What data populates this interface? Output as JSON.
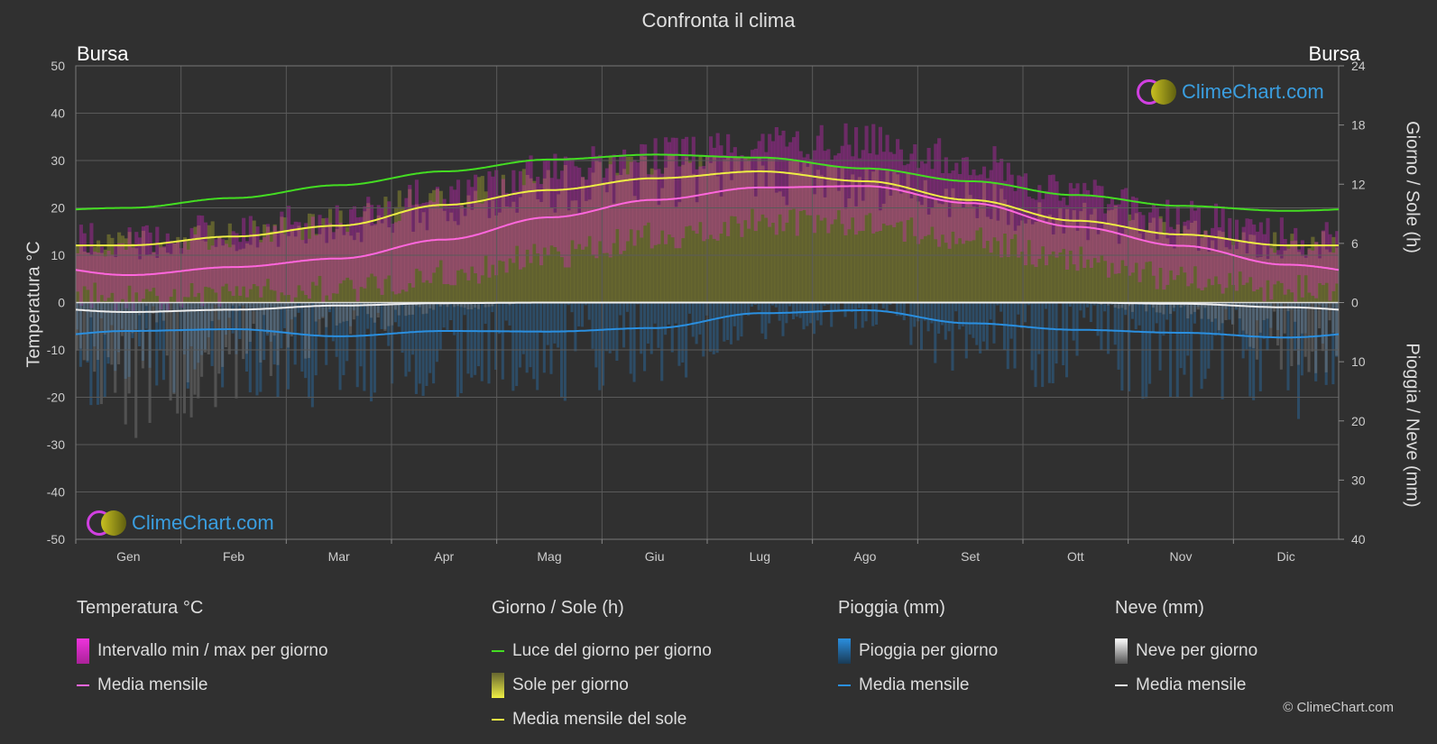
{
  "title": "Confronta il clima",
  "city_left": "Bursa",
  "city_right": "Bursa",
  "axis_left_title": "Temperatura °C",
  "axis_right_top_title": "Giorno / Sole (h)",
  "axis_right_bottom_title": "Pioggia / Neve (mm)",
  "logo_text": "ClimeChart.com",
  "copyright": "© ClimeChart.com",
  "colors": {
    "background": "#303030",
    "daylight": "#44dd22",
    "sunshine_avg": "#eeee44",
    "temp_avg": "#ff66dd",
    "rain_avg": "#2a8fe0",
    "snow_avg": "#eeeeee",
    "temp_range": "#dd22cc",
    "sunshine_fill": "#8a8a30",
    "rain_bars": "#2a6ea8",
    "snow_bars": "#888888"
  },
  "legend": {
    "temperature": {
      "title": "Temperatura °C",
      "range_label": "Intervallo min / max per giorno",
      "avg_label": "Media mensile"
    },
    "daysun": {
      "title": "Giorno / Sole (h)",
      "daylight_label": "Luce del giorno per giorno",
      "sun_label": "Sole per giorno",
      "sun_avg_label": "Media mensile del sole"
    },
    "rain": {
      "title": "Pioggia (mm)",
      "rain_label": "Pioggia per giorno",
      "avg_label": "Media mensile"
    },
    "snow": {
      "title": "Neve (mm)",
      "snow_label": "Neve per giorno",
      "avg_label": "Media mensile"
    }
  },
  "chart_data": {
    "type": "line",
    "months": [
      "Gen",
      "Feb",
      "Mar",
      "Apr",
      "Mag",
      "Giu",
      "Lug",
      "Ago",
      "Set",
      "Ott",
      "Nov",
      "Dic"
    ],
    "left_axis": {
      "label": "Temperatura °C",
      "range": [
        -50,
        50
      ],
      "ticks": [
        50,
        40,
        30,
        20,
        10,
        0,
        -10,
        -20,
        -30,
        -40,
        -50
      ]
    },
    "right_axis_top": {
      "label": "Giorno / Sole (h)",
      "range": [
        0,
        24
      ],
      "ticks": [
        24,
        18,
        12,
        6,
        0
      ]
    },
    "right_axis_bottom": {
      "label": "Pioggia / Neve (mm)",
      "range": [
        0,
        40
      ],
      "ticks": [
        0,
        10,
        20,
        30,
        40
      ]
    },
    "series": [
      {
        "name": "Luce del giorno per giorno",
        "unit": "h",
        "values": [
          9.6,
          10.6,
          11.9,
          13.3,
          14.5,
          15.0,
          14.7,
          13.6,
          12.3,
          10.9,
          9.8,
          9.3
        ]
      },
      {
        "name": "Media mensile del sole",
        "unit": "h",
        "values": [
          5.8,
          6.7,
          7.8,
          9.9,
          11.4,
          12.6,
          13.3,
          12.3,
          10.4,
          8.3,
          6.9,
          5.8
        ]
      },
      {
        "name": "Media mensile",
        "unit": "°C",
        "values": [
          5.8,
          7.5,
          9.3,
          13.3,
          18.0,
          21.7,
          24.3,
          24.6,
          21.0,
          16.0,
          12.0,
          8.0
        ]
      },
      {
        "name": "Media mensile",
        "unit": "mm (pioggia)",
        "values": [
          4.8,
          4.5,
          5.7,
          4.8,
          4.9,
          4.3,
          1.8,
          1.3,
          3.5,
          4.6,
          5.1,
          5.9
        ]
      },
      {
        "name": "Media mensile",
        "unit": "mm (neve)",
        "values": [
          1.6,
          1.2,
          0.5,
          0.1,
          0,
          0,
          0,
          0,
          0,
          0,
          0.2,
          0.8
        ]
      }
    ],
    "temp_range_daily_approx": {
      "min": [
        1,
        2,
        3,
        6,
        10,
        14,
        17,
        17,
        13,
        9,
        5,
        3
      ],
      "max": [
        13,
        15,
        18,
        23,
        28,
        31,
        34,
        34,
        30,
        23,
        18,
        14
      ]
    },
    "grid": true
  }
}
